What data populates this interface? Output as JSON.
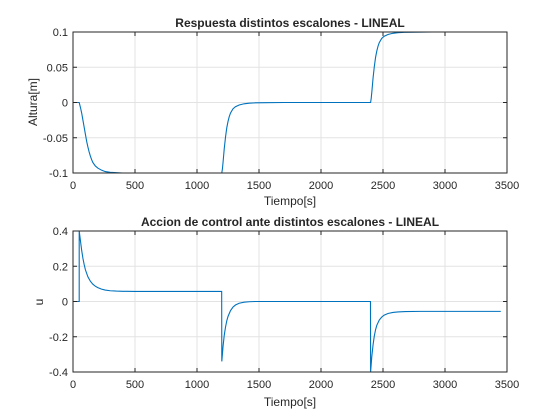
{
  "figure_bg": "#ffffff",
  "line_color": "#0072bd",
  "chart_data": [
    {
      "type": "line",
      "title": "Respuesta distintos escalones - LINEAL",
      "xlabel": "Tiempo[s]",
      "ylabel": "Altura[m]",
      "xlim": [
        0,
        3500
      ],
      "ylim": [
        -0.1,
        0.1
      ],
      "xticks": [
        0,
        500,
        1000,
        1500,
        2000,
        2500,
        3000,
        3500
      ],
      "xtick_labels": [
        "0",
        "500",
        "1000",
        "1500",
        "2000",
        "2500",
        "3000",
        "3500"
      ],
      "yticks": [
        -0.1,
        -0.05,
        0,
        0.05,
        0.1
      ],
      "ytick_labels": [
        "-0.1",
        "-0.05",
        "0",
        "0.05",
        "0.1"
      ],
      "grid": true,
      "x": [
        0,
        50,
        60,
        70,
        80,
        90,
        100,
        110,
        120,
        130,
        140,
        150,
        160,
        180,
        200,
        230,
        260,
        300,
        350,
        400,
        500,
        700,
        1000,
        1190,
        1200,
        1205,
        1210,
        1215,
        1220,
        1230,
        1240,
        1250,
        1260,
        1270,
        1290,
        1310,
        1340,
        1380,
        1420,
        1470,
        1550,
        1700,
        2000,
        2390,
        2400,
        2405,
        2410,
        2415,
        2420,
        2430,
        2440,
        2450,
        2460,
        2470,
        2490,
        2510,
        2540,
        2580,
        2620,
        2670,
        2750,
        2900,
        3100,
        3450
      ],
      "y": [
        0,
        0,
        -0.007,
        -0.015,
        -0.025,
        -0.035,
        -0.045,
        -0.055,
        -0.063,
        -0.07,
        -0.076,
        -0.081,
        -0.085,
        -0.09,
        -0.093,
        -0.096,
        -0.098,
        -0.099,
        -0.0995,
        -0.1,
        -0.1,
        -0.1,
        -0.1,
        -0.1,
        -0.1,
        -0.094,
        -0.085,
        -0.075,
        -0.065,
        -0.049,
        -0.036,
        -0.027,
        -0.02,
        -0.015,
        -0.009,
        -0.006,
        -0.0035,
        -0.0018,
        -0.001,
        -0.0005,
        -0.0002,
        0,
        0,
        0,
        0,
        0.006,
        0.015,
        0.025,
        0.035,
        0.051,
        0.064,
        0.073,
        0.08,
        0.085,
        0.091,
        0.094,
        0.0965,
        0.0982,
        0.099,
        0.0995,
        0.0998,
        0.1,
        0.1,
        0.1
      ]
    },
    {
      "type": "line",
      "title": "Accion de control ante distintos escalones - LINEAL",
      "xlabel": "Tiempo[s]",
      "ylabel": "u",
      "xlim": [
        0,
        3500
      ],
      "ylim": [
        -0.4,
        0.4
      ],
      "xticks": [
        0,
        500,
        1000,
        1500,
        2000,
        2500,
        3000,
        3500
      ],
      "xtick_labels": [
        "0",
        "500",
        "1000",
        "1500",
        "2000",
        "2500",
        "3000",
        "3500"
      ],
      "yticks": [
        -0.4,
        -0.2,
        0,
        0.2,
        0.4
      ],
      "ytick_labels": [
        "-0.4",
        "-0.2",
        "0",
        "0.2",
        "0.4"
      ],
      "grid": true,
      "x": [
        0,
        50,
        50,
        60,
        70,
        80,
        90,
        100,
        120,
        140,
        160,
        180,
        200,
        230,
        260,
        300,
        350,
        400,
        500,
        700,
        1000,
        1199,
        1200,
        1210,
        1220,
        1230,
        1240,
        1250,
        1270,
        1290,
        1310,
        1340,
        1380,
        1420,
        1470,
        1550,
        1700,
        2000,
        2399,
        2400,
        2410,
        2420,
        2430,
        2440,
        2450,
        2470,
        2490,
        2510,
        2540,
        2580,
        2620,
        2680,
        2800,
        3000,
        3450
      ],
      "y": [
        0,
        0,
        0.4,
        0.345,
        0.29,
        0.245,
        0.21,
        0.18,
        0.14,
        0.115,
        0.098,
        0.087,
        0.079,
        0.07,
        0.065,
        0.061,
        0.059,
        0.058,
        0.057,
        0.057,
        0.057,
        0.057,
        -0.34,
        -0.255,
        -0.19,
        -0.145,
        -0.11,
        -0.085,
        -0.052,
        -0.032,
        -0.02,
        -0.01,
        -0.004,
        -0.0015,
        0,
        0,
        0,
        0,
        0,
        -0.4,
        -0.31,
        -0.245,
        -0.195,
        -0.16,
        -0.135,
        -0.105,
        -0.088,
        -0.077,
        -0.068,
        -0.062,
        -0.059,
        -0.057,
        -0.056,
        -0.056,
        -0.056
      ]
    }
  ]
}
